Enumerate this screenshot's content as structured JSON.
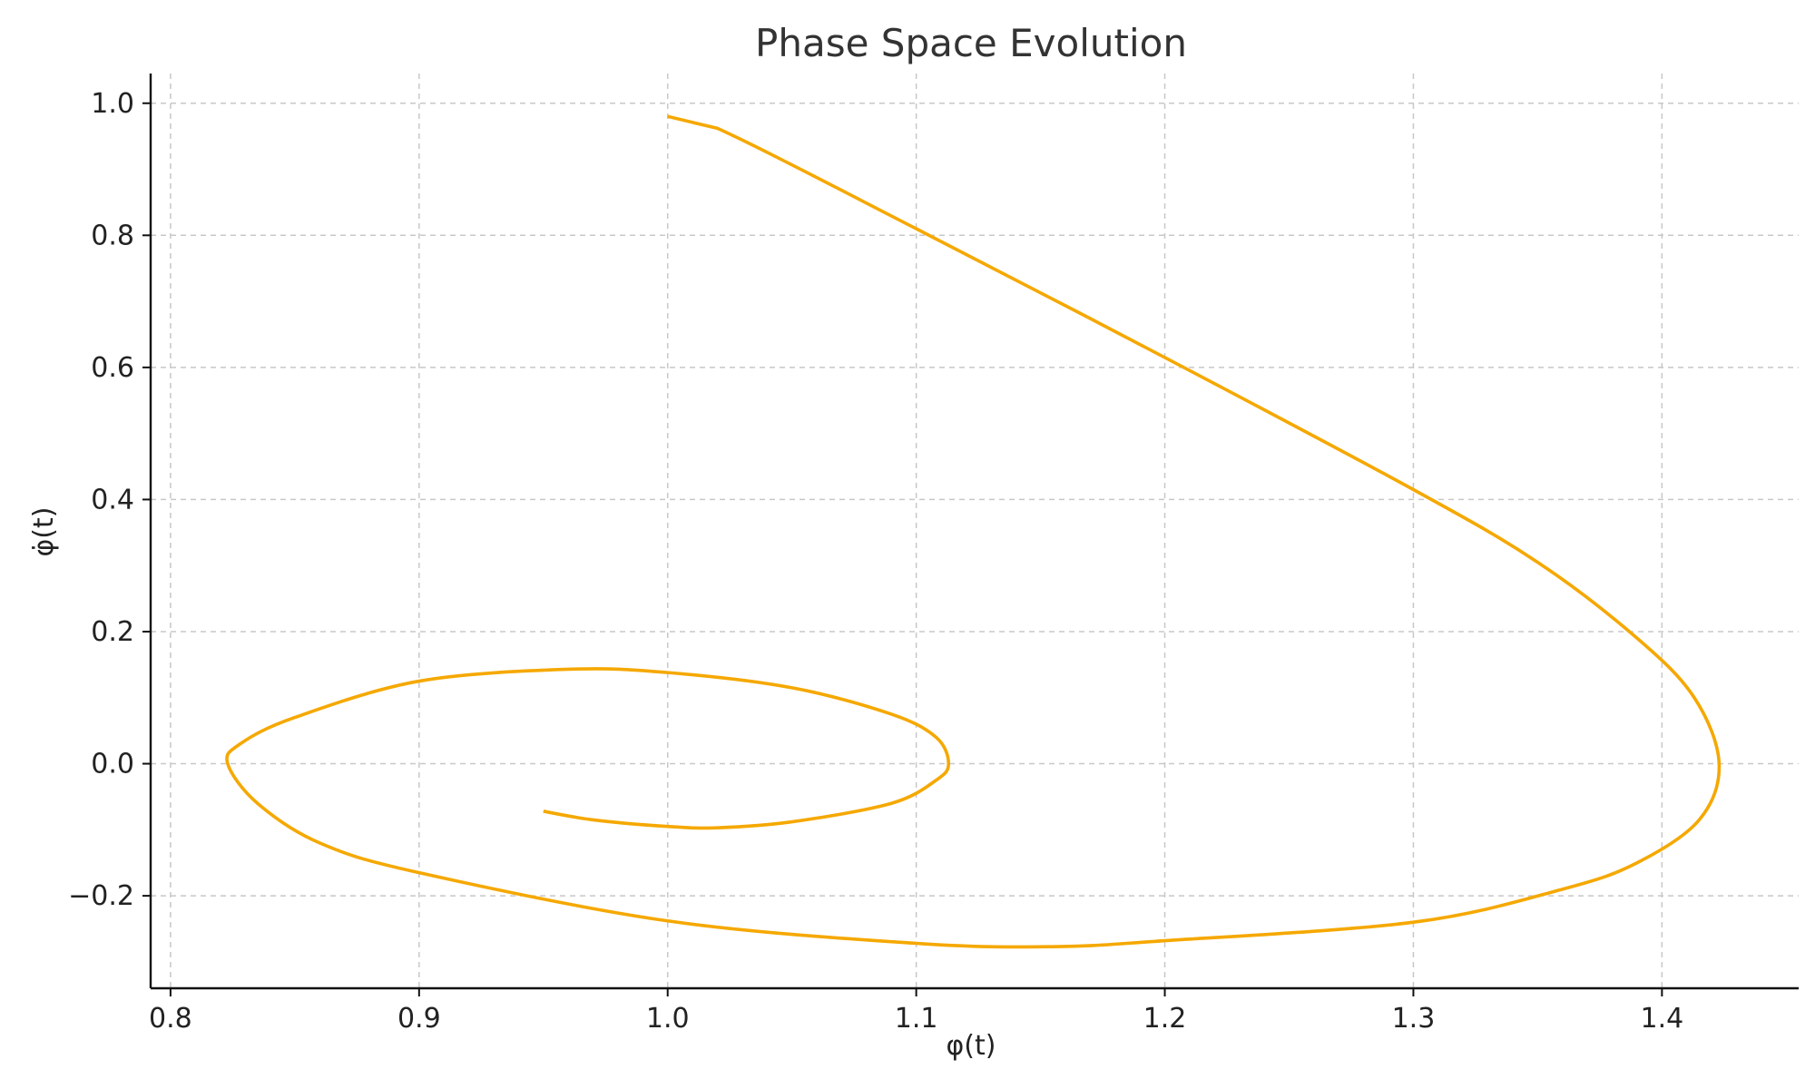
{
  "chart_data": {
    "type": "line",
    "title": "Phase Space Evolution",
    "xlabel": "φ(t)",
    "ylabel": "φ̇(t)",
    "xlim": [
      0.792,
      1.455
    ],
    "ylim": [
      -0.34,
      1.045
    ],
    "xticks": [
      0.8,
      0.9,
      1.0,
      1.1,
      1.2,
      1.3,
      1.4
    ],
    "xtick_labels": [
      "0.8",
      "0.9",
      "1.0",
      "1.1",
      "1.2",
      "1.3",
      "1.4"
    ],
    "yticks": [
      -0.2,
      0.0,
      0.2,
      0.4,
      0.6,
      0.8,
      1.0
    ],
    "ytick_labels": [
      "−0.2",
      "0.0",
      "0.2",
      "0.4",
      "0.6",
      "0.8",
      "1.0"
    ],
    "grid": true,
    "series": [
      {
        "color": "#f5a800",
        "x": [
          1.0,
          1.02,
          1.1,
          1.2,
          1.3,
          1.35,
          1.39,
          1.413,
          1.423,
          1.415,
          1.39,
          1.36,
          1.3,
          1.2,
          1.155,
          1.1,
          1.0,
          0.9,
          0.86,
          0.835,
          0.823,
          0.828,
          0.85,
          0.9,
          0.96,
          1.0,
          1.05,
          1.09,
          1.108,
          1.113,
          1.108,
          1.09,
          1.05,
          1.02,
          1.0,
          0.97,
          0.95
        ],
        "y": [
          0.98,
          0.962,
          0.81,
          0.615,
          0.415,
          0.305,
          0.19,
          0.1,
          0.0,
          -0.085,
          -0.15,
          -0.19,
          -0.24,
          -0.268,
          -0.277,
          -0.272,
          -0.238,
          -0.165,
          -0.12,
          -0.06,
          0.0,
          0.03,
          0.07,
          0.125,
          0.143,
          0.138,
          0.115,
          0.075,
          0.04,
          0.0,
          -0.025,
          -0.06,
          -0.088,
          -0.097,
          -0.095,
          -0.085,
          -0.072
        ]
      }
    ]
  }
}
